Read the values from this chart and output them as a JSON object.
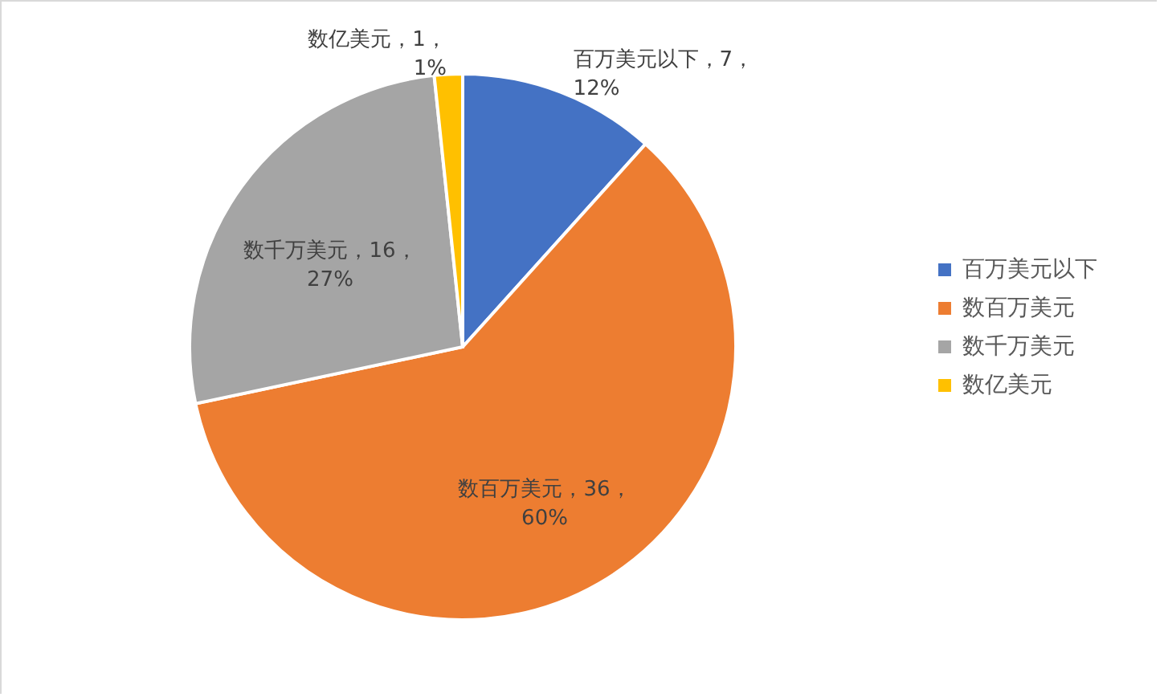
{
  "chart_data": {
    "type": "pie",
    "categories": [
      "百万美元以下",
      "数百万美元",
      "数千万美元",
      "数亿美元"
    ],
    "values": [
      7,
      36,
      16,
      1
    ],
    "colors": [
      "#4472c4",
      "#ed7d31",
      "#a5a5a5",
      "#ffc000"
    ],
    "value_labels": [
      "百万美元以下，7，12%",
      "数百万美元，36，60%",
      "数千万美元，16，27%",
      "数亿美元，1，1%"
    ],
    "legend": "right"
  }
}
